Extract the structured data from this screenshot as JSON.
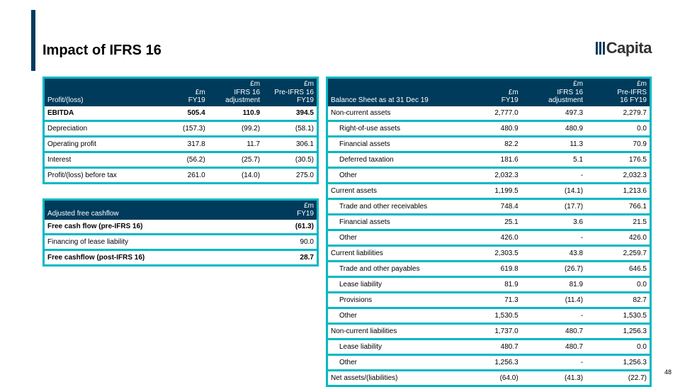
{
  "title": "Impact of IFRS 16",
  "logo_text": "Capita",
  "page_number": "48",
  "t1": {
    "headers": [
      "Profit/(loss)",
      "£m\nFY19",
      "£m\nIFRS 16\nadjustment",
      "£m\nPre-IFRS 16\nFY19"
    ],
    "rows": [
      {
        "label": "EBITDA",
        "v": [
          "505.4",
          "110.9",
          "394.5"
        ],
        "bold": true
      },
      {
        "label": "Depreciation",
        "v": [
          "(157.3)",
          "(99.2)",
          "(58.1)"
        ]
      },
      {
        "label": "Operating profit",
        "v": [
          "317.8",
          "11.7",
          "306.1"
        ]
      },
      {
        "label": "Interest",
        "v": [
          "(56.2)",
          "(25.7)",
          "(30.5)"
        ]
      },
      {
        "label": "Profit/(loss) before tax",
        "v": [
          "261.0",
          "(14.0)",
          "275.0"
        ]
      }
    ]
  },
  "t2": {
    "headers": [
      "Adjusted free cashflow",
      "£m\nFY19"
    ],
    "rows": [
      {
        "label": "Free cash flow (pre-IFRS 16)",
        "v": [
          "(61.3)"
        ],
        "bold": true
      },
      {
        "label": "Financing of lease liability",
        "v": [
          "90.0"
        ]
      },
      {
        "label": "Free cashflow (post-IFRS 16)",
        "v": [
          "28.7"
        ],
        "bold": true
      }
    ]
  },
  "t3": {
    "headers": [
      "Balance Sheet as at 31 Dec 19",
      "£m\nFY19",
      "£m\nIFRS 16\nadjustment",
      "£m\nPre-IFRS\n16 FY19"
    ],
    "rows": [
      {
        "label": "Non-current assets",
        "v": [
          "2,777.0",
          "497.3",
          "2,279.7"
        ]
      },
      {
        "label": "Right-of-use assets",
        "v": [
          "480.9",
          "480.9",
          "0.0"
        ],
        "indent": true
      },
      {
        "label": "Financial assets",
        "v": [
          "82.2",
          "11.3",
          "70.9"
        ],
        "indent": true
      },
      {
        "label": "Deferred taxation",
        "v": [
          "181.6",
          "5.1",
          "176.5"
        ],
        "indent": true
      },
      {
        "label": "Other",
        "v": [
          "2,032.3",
          "-",
          "2,032.3"
        ],
        "indent": true
      },
      {
        "label": "Current assets",
        "v": [
          "1,199.5",
          "(14.1)",
          "1,213.6"
        ]
      },
      {
        "label": "Trade and other receivables",
        "v": [
          "748.4",
          "(17.7)",
          "766.1"
        ],
        "indent": true
      },
      {
        "label": "Financial assets",
        "v": [
          "25.1",
          "3.6",
          "21.5"
        ],
        "indent": true
      },
      {
        "label": "Other",
        "v": [
          "426.0",
          "-",
          "426.0"
        ],
        "indent": true
      },
      {
        "label": "Current liabilities",
        "v": [
          "2,303.5",
          "43.8",
          "2,259.7"
        ]
      },
      {
        "label": "Trade and other payables",
        "v": [
          "619.8",
          "(26.7)",
          "646.5"
        ],
        "indent": true
      },
      {
        "label": "Lease liability",
        "v": [
          "81.9",
          "81.9",
          "0.0"
        ],
        "indent": true
      },
      {
        "label": "Provisions",
        "v": [
          "71.3",
          "(11.4)",
          "82.7"
        ],
        "indent": true
      },
      {
        "label": "Other",
        "v": [
          "1,530.5",
          "-",
          "1,530.5"
        ],
        "indent": true
      },
      {
        "label": "Non-current liabilities",
        "v": [
          "1,737.0",
          "480.7",
          "1,256.3"
        ]
      },
      {
        "label": "Lease liability",
        "v": [
          "480.7",
          "480.7",
          "0.0"
        ],
        "indent": true
      },
      {
        "label": "Other",
        "v": [
          "1,256.3",
          "-",
          "1,256.3"
        ],
        "indent": true
      },
      {
        "label": "Net assets/(liabilities)",
        "v": [
          "(64.0)",
          "(41.3)",
          "(22.7)"
        ]
      }
    ]
  }
}
